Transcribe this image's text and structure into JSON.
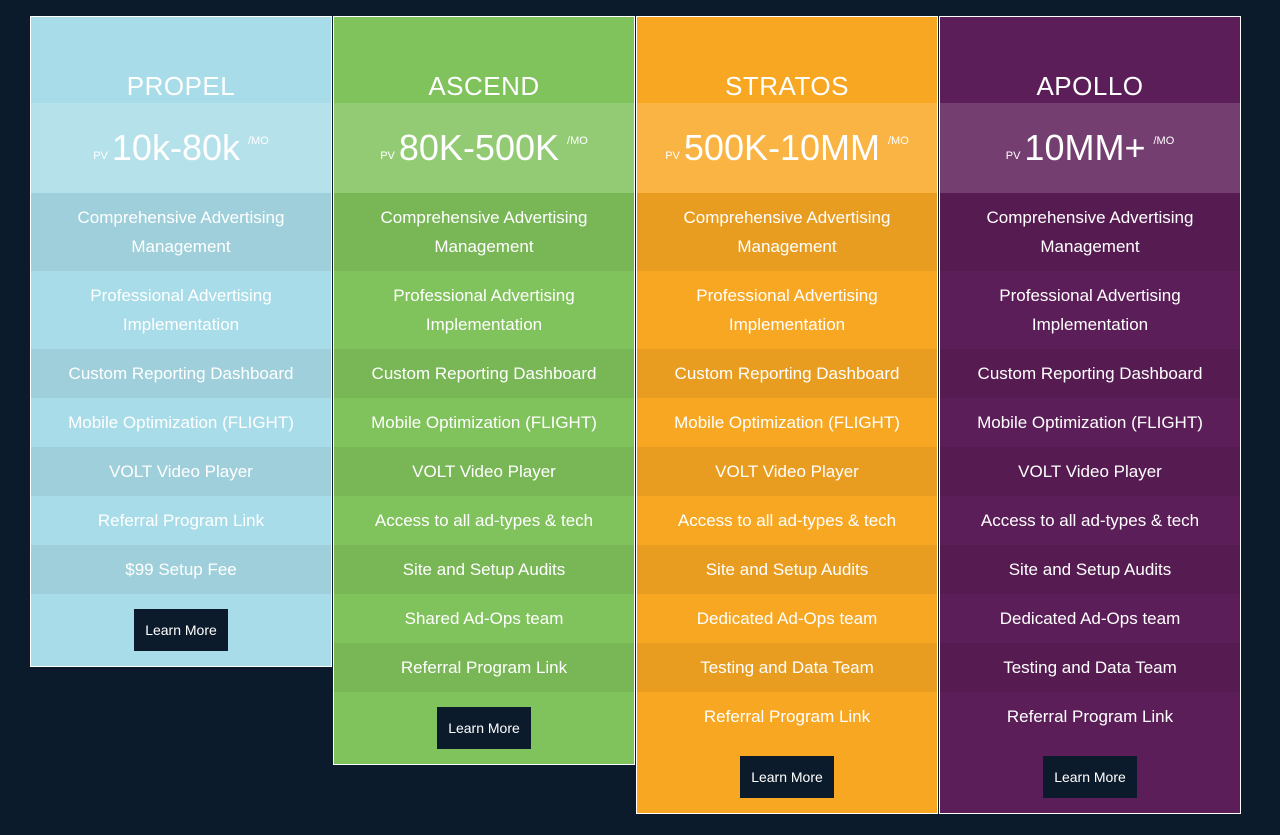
{
  "plans": [
    {
      "name": "PROPEL",
      "prefix": "PV",
      "price": "10k-80k",
      "unit": "/MO",
      "features": [
        "Comprehensive Advertising Management",
        "Professional Advertising Implementation",
        "Custom Reporting Dashboard",
        "Mobile Optimization (FLIGHT)",
        "VOLT Video Player",
        "Referral Program Link",
        "$99 Setup Fee"
      ],
      "button": "Learn More",
      "color": "#a8dce8"
    },
    {
      "name": "ASCEND",
      "prefix": "PV",
      "price": "80K-500K",
      "unit": "/MO",
      "features": [
        "Comprehensive Advertising Management",
        "Professional Advertising Implementation",
        "Custom Reporting Dashboard",
        "Mobile Optimization (FLIGHT)",
        "VOLT Video Player",
        "Access to all ad-types & tech",
        "Site and Setup Audits",
        "Shared Ad-Ops team",
        "Referral Program Link"
      ],
      "button": "Learn More",
      "color": "#80c25c"
    },
    {
      "name": "STRATOS",
      "prefix": "PV",
      "price": "500K-10MM",
      "unit": "/MO",
      "features": [
        "Comprehensive Advertising Management",
        "Professional Advertising Implementation",
        "Custom Reporting Dashboard",
        "Mobile Optimization (FLIGHT)",
        "VOLT Video Player",
        "Access to all ad-types & tech",
        "Site and Setup Audits",
        "Dedicated Ad-Ops team",
        "Testing and Data Team",
        "Referral Program Link"
      ],
      "button": "Learn More",
      "color": "#f8a723"
    },
    {
      "name": "APOLLO",
      "prefix": "PV",
      "price": "10MM+",
      "unit": "/MO",
      "features": [
        "Comprehensive Advertising Management",
        "Professional Advertising Implementation",
        "Custom Reporting Dashboard",
        "Mobile Optimization (FLIGHT)",
        "VOLT Video Player",
        "Access to all ad-types & tech",
        "Site and Setup Audits",
        "Dedicated Ad-Ops team",
        "Testing and Data Team",
        "Referral Program Link"
      ],
      "button": "Learn More",
      "color": "#5c1e58"
    }
  ]
}
